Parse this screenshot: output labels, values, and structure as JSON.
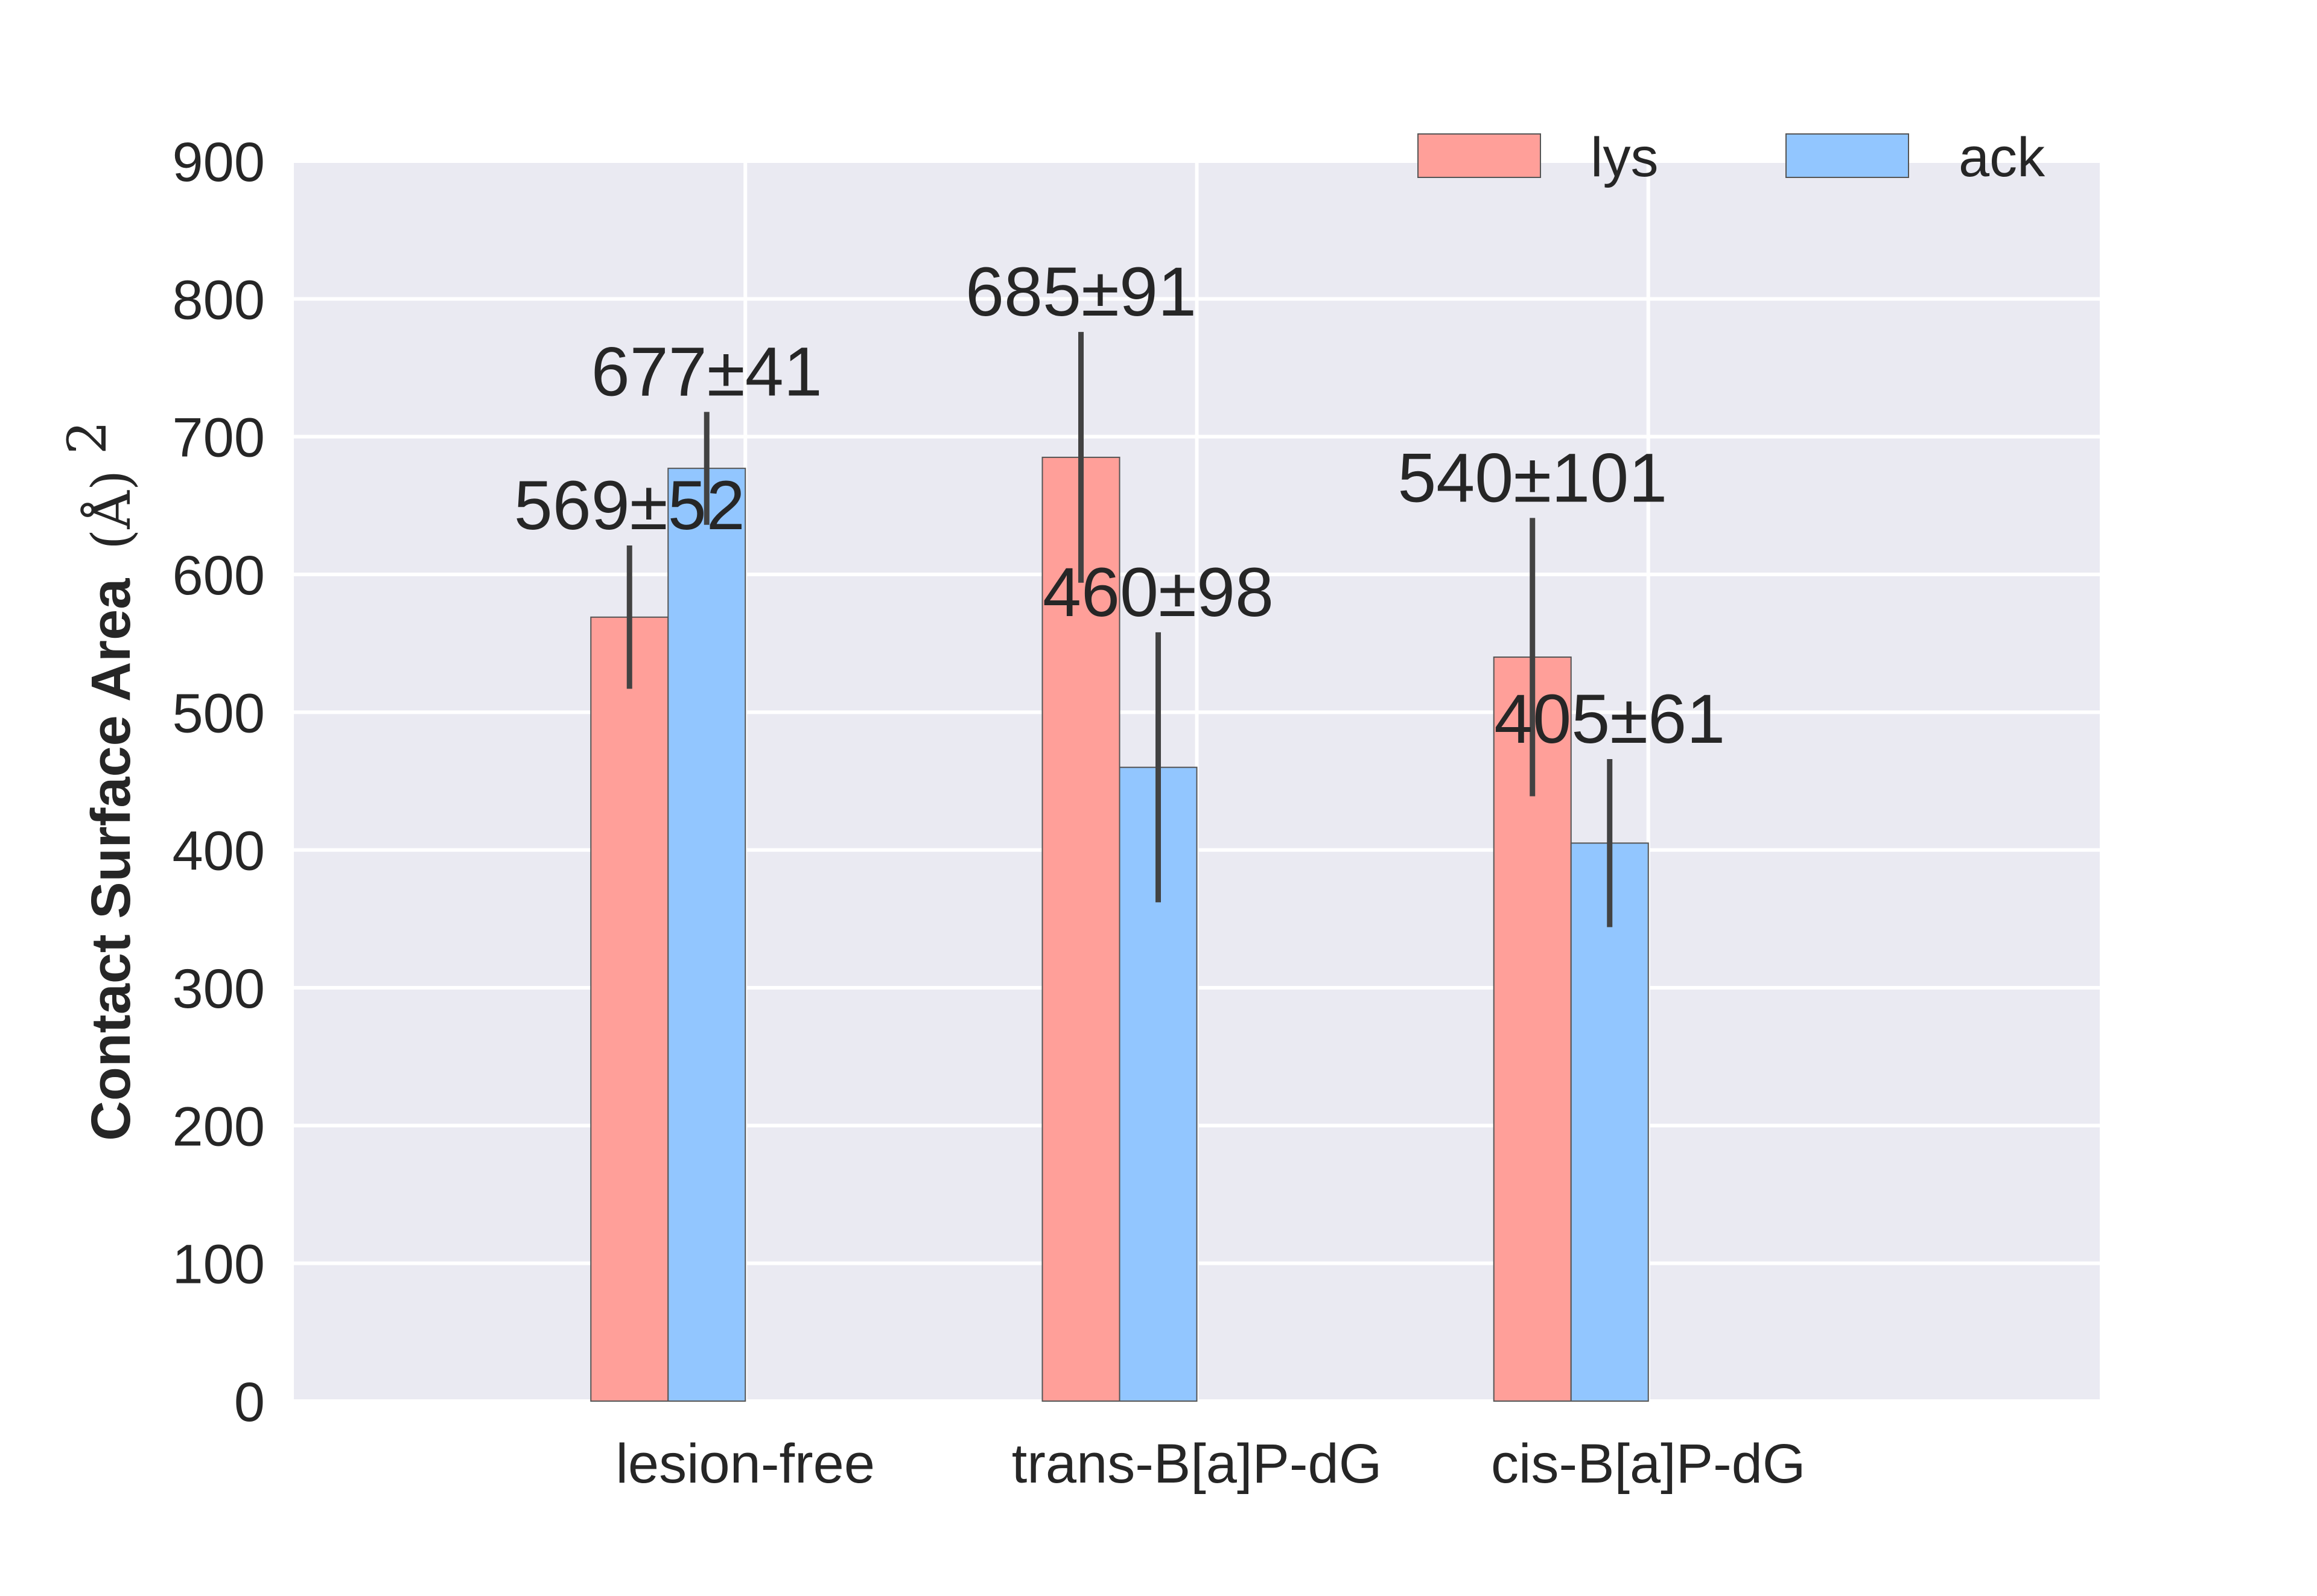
{
  "chart_data": {
    "type": "bar",
    "categories": [
      "lesion-free",
      "trans-B[a]P-dG",
      "cis-B[a]P-dG"
    ],
    "series": [
      {
        "name": "lys",
        "values": [
          569,
          685,
          540
        ],
        "errors": [
          52,
          91,
          101
        ],
        "color": "#FF9F99"
      },
      {
        "name": "ack",
        "values": [
          677,
          460,
          405
        ],
        "errors": [
          41,
          98,
          61
        ],
        "color": "#92C6FF"
      }
    ],
    "data_labels": [
      [
        "569±52",
        "685±91",
        "540±101"
      ],
      [
        "677±41",
        "460±98",
        "405±61"
      ]
    ],
    "ylabel": "Contact Surface Area",
    "ylabel_unit": "(Å)",
    "ylabel_unit_sup": "2",
    "ylim": [
      0,
      900
    ],
    "yticks": [
      0,
      100,
      200,
      300,
      400,
      500,
      600,
      700,
      800,
      900
    ],
    "grid": true,
    "legend_position": "top-right",
    "style": {
      "plot_background": "#EAEAF2",
      "grid_color": "#FFFFFF",
      "error_color": "#424242"
    }
  }
}
